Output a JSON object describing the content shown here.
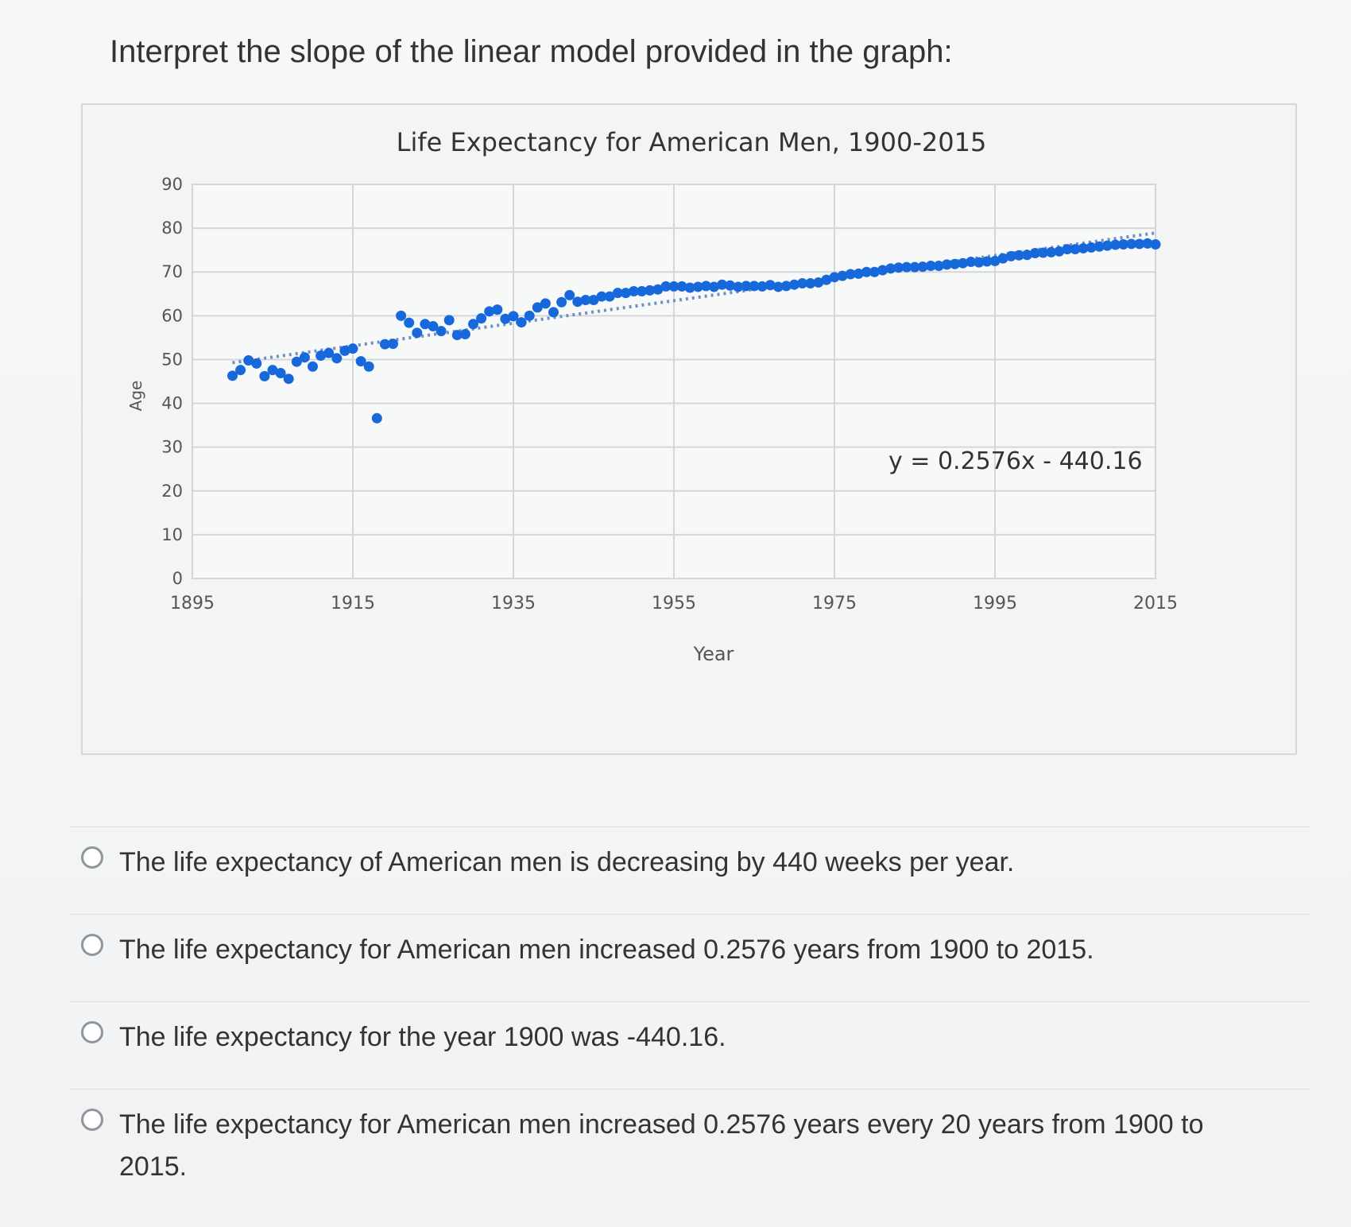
{
  "question": {
    "prompt": "Interpret the slope of the linear model provided in the graph:"
  },
  "chart_data": {
    "type": "scatter",
    "title": "Life Expectancy for American Men, 1900-2015",
    "xlabel": "Year",
    "ylabel": "Age",
    "xlim": [
      1895,
      2015
    ],
    "ylim": [
      0,
      90
    ],
    "x_ticks": [
      "1895",
      "1915",
      "1935",
      "1955",
      "1975",
      "1995",
      "2015"
    ],
    "y_ticks": [
      "0",
      "10",
      "20",
      "30",
      "40",
      "50",
      "60",
      "70",
      "80",
      "90"
    ],
    "grid": true,
    "legend": "none",
    "trendline_equation": "y = 0.2576x - 440.16",
    "trendline": {
      "slope": 0.2576,
      "intercept": -440.16
    },
    "series": [
      {
        "x": [
          1900,
          1901,
          1902,
          1903,
          1904,
          1905,
          1906,
          1907,
          1908,
          1909,
          1910,
          1911,
          1912,
          1913,
          1914,
          1915,
          1916,
          1917,
          1918,
          1919,
          1920,
          1921,
          1922,
          1923,
          1924,
          1925,
          1926,
          1927,
          1928,
          1929,
          1930,
          1931,
          1932,
          1933,
          1934,
          1935,
          1936,
          1937,
          1938,
          1939,
          1940,
          1941,
          1942,
          1943,
          1944,
          1945,
          1946,
          1947,
          1948,
          1949,
          1950,
          1951,
          1952,
          1953,
          1954,
          1955,
          1956,
          1957,
          1958,
          1959,
          1960,
          1961,
          1962,
          1963,
          1964,
          1965,
          1966,
          1967,
          1968,
          1969,
          1970,
          1971,
          1972,
          1973,
          1974,
          1975,
          1976,
          1977,
          1978,
          1979,
          1980,
          1981,
          1982,
          1983,
          1984,
          1985,
          1986,
          1987,
          1988,
          1989,
          1990,
          1991,
          1992,
          1993,
          1994,
          1995,
          1996,
          1997,
          1998,
          1999,
          2000,
          2001,
          2002,
          2003,
          2004,
          2005,
          2006,
          2007,
          2008,
          2009,
          2010,
          2011,
          2012,
          2013,
          2014,
          2015
        ],
        "y": [
          46.3,
          47.6,
          49.8,
          49.1,
          46.2,
          47.6,
          46.9,
          45.6,
          49.5,
          50.5,
          48.4,
          50.9,
          51.5,
          50.3,
          52.0,
          52.5,
          49.6,
          48.4,
          36.6,
          53.5,
          53.6,
          60.0,
          58.4,
          56.1,
          58.1,
          57.6,
          56.5,
          59.0,
          55.6,
          55.8,
          58.1,
          59.4,
          61.0,
          61.4,
          59.3,
          59.9,
          58.5,
          60.0,
          61.9,
          62.8,
          60.8,
          63.1,
          64.7,
          63.2,
          63.6,
          63.6,
          64.4,
          64.4,
          65.2,
          65.2,
          65.6,
          65.6,
          65.8,
          66.0,
          66.7,
          66.7,
          66.7,
          66.4,
          66.6,
          66.8,
          66.6,
          67.1,
          66.9,
          66.6,
          66.8,
          66.8,
          66.7,
          67.0,
          66.6,
          66.8,
          67.1,
          67.4,
          67.4,
          67.6,
          68.2,
          68.8,
          69.1,
          69.5,
          69.6,
          70.0,
          70.0,
          70.4,
          70.8,
          71.0,
          71.1,
          71.1,
          71.2,
          71.4,
          71.4,
          71.7,
          71.8,
          72.0,
          72.3,
          72.2,
          72.4,
          72.5,
          73.1,
          73.6,
          73.8,
          73.9,
          74.3,
          74.4,
          74.5,
          74.7,
          75.2,
          75.2,
          75.4,
          75.6,
          75.8,
          76.0,
          76.2,
          76.3,
          76.4,
          76.4,
          76.5,
          76.3
        ]
      }
    ]
  },
  "answers": {
    "options": [
      "The life expectancy of American men is decreasing by 440 weeks per year.",
      "The life expectancy for American men increased 0.2576 years from 1900 to 2015.",
      "The life expectancy for the year 1900 was -440.16.",
      "The life expectancy for American men increased 0.2576 years every 20 years from 1900 to 2015."
    ]
  },
  "colors": {
    "series": "#1769db",
    "grid": "#d4d6d8",
    "background": "#f3f4f4",
    "axis_text": "#555555"
  }
}
